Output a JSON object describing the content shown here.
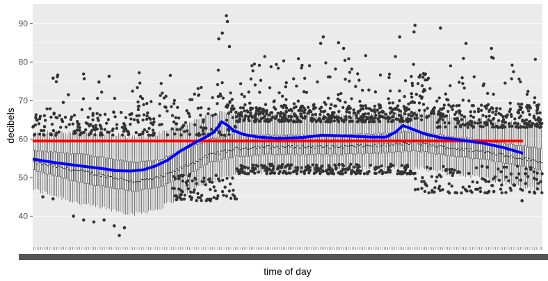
{
  "chart_data": {
    "type": "box",
    "title": "",
    "xlabel": "time of day",
    "ylabel": "decibels",
    "ylim": [
      32,
      95
    ],
    "yticks": [
      40,
      50,
      60,
      70,
      80,
      90
    ],
    "x_tick_labels_note": "",
    "grid": true,
    "background": "#ebebeb",
    "reference_line": {
      "value": 59.5,
      "color": "#ff0000"
    },
    "trend_line": {
      "color": "#0000ff",
      "points": [
        [
          0.0,
          54.8
        ],
        [
          0.05,
          53.8
        ],
        [
          0.1,
          53.0
        ],
        [
          0.15,
          52.2
        ],
        [
          0.17,
          51.8
        ],
        [
          0.2,
          51.7
        ],
        [
          0.225,
          52.0
        ],
        [
          0.25,
          53.0
        ],
        [
          0.275,
          54.5
        ],
        [
          0.3,
          56.8
        ],
        [
          0.33,
          59.0
        ],
        [
          0.36,
          61.0
        ],
        [
          0.375,
          62.5
        ],
        [
          0.385,
          64.5
        ],
        [
          0.395,
          63.8
        ],
        [
          0.41,
          62.2
        ],
        [
          0.43,
          61.2
        ],
        [
          0.46,
          60.5
        ],
        [
          0.5,
          60.2
        ],
        [
          0.55,
          60.4
        ],
        [
          0.59,
          61.0
        ],
        [
          0.64,
          60.8
        ],
        [
          0.69,
          60.5
        ],
        [
          0.72,
          60.5
        ],
        [
          0.74,
          61.8
        ],
        [
          0.755,
          63.5
        ],
        [
          0.77,
          62.8
        ],
        [
          0.8,
          61.3
        ],
        [
          0.83,
          60.4
        ],
        [
          0.87,
          59.8
        ],
        [
          0.92,
          58.9
        ],
        [
          0.96,
          57.8
        ],
        [
          1.0,
          56.3
        ]
      ]
    },
    "box_series": {
      "name": "",
      "count": 288,
      "median": [
        [
          0.0,
          54.0
        ],
        [
          0.1,
          51.5
        ],
        [
          0.2,
          49.0
        ],
        [
          0.25,
          50.0
        ],
        [
          0.3,
          53.0
        ],
        [
          0.35,
          56.0
        ],
        [
          0.4,
          57.5
        ],
        [
          0.45,
          58.0
        ],
        [
          0.5,
          58.0
        ],
        [
          0.6,
          58.0
        ],
        [
          0.7,
          58.5
        ],
        [
          0.75,
          59.0
        ],
        [
          0.8,
          58.0
        ],
        [
          0.9,
          56.5
        ],
        [
          1.0,
          54.0
        ]
      ],
      "q1": [
        [
          0.0,
          52.0
        ],
        [
          0.1,
          48.5
        ],
        [
          0.2,
          46.5
        ],
        [
          0.25,
          47.5
        ],
        [
          0.3,
          50.5
        ],
        [
          0.35,
          54.0
        ],
        [
          0.4,
          55.5
        ],
        [
          0.45,
          56.0
        ],
        [
          0.5,
          56.0
        ],
        [
          0.6,
          56.0
        ],
        [
          0.7,
          56.5
        ],
        [
          0.75,
          57.0
        ],
        [
          0.8,
          56.0
        ],
        [
          0.9,
          54.5
        ],
        [
          1.0,
          52.0
        ]
      ],
      "q3": [
        [
          0.0,
          57.0
        ],
        [
          0.1,
          56.0
        ],
        [
          0.2,
          54.0
        ],
        [
          0.25,
          54.5
        ],
        [
          0.3,
          57.5
        ],
        [
          0.35,
          60.0
        ],
        [
          0.4,
          61.5
        ],
        [
          0.45,
          61.0
        ],
        [
          0.5,
          61.0
        ],
        [
          0.6,
          61.0
        ],
        [
          0.7,
          61.5
        ],
        [
          0.75,
          62.0
        ],
        [
          0.8,
          61.0
        ],
        [
          0.9,
          59.5
        ],
        [
          1.0,
          57.5
        ]
      ],
      "whisker_low": [
        [
          0.0,
          47.0
        ],
        [
          0.1,
          43.0
        ],
        [
          0.2,
          40.5
        ],
        [
          0.25,
          42.0
        ],
        [
          0.3,
          46.0
        ],
        [
          0.35,
          49.0
        ],
        [
          0.4,
          51.0
        ],
        [
          0.45,
          51.5
        ],
        [
          0.5,
          51.5
        ],
        [
          0.6,
          52.0
        ],
        [
          0.7,
          52.5
        ],
        [
          0.75,
          52.5
        ],
        [
          0.8,
          51.5
        ],
        [
          0.9,
          49.5
        ],
        [
          1.0,
          46.5
        ]
      ],
      "whisker_high": [
        [
          0.0,
          61.5
        ],
        [
          0.1,
          62.0
        ],
        [
          0.2,
          60.5
        ],
        [
          0.25,
          61.5
        ],
        [
          0.3,
          64.0
        ],
        [
          0.35,
          66.5
        ],
        [
          0.4,
          67.0
        ],
        [
          0.45,
          66.5
        ],
        [
          0.5,
          66.5
        ],
        [
          0.6,
          66.5
        ],
        [
          0.7,
          66.5
        ],
        [
          0.75,
          67.0
        ],
        [
          0.8,
          66.5
        ],
        [
          0.9,
          65.0
        ],
        [
          1.0,
          63.0
        ]
      ]
    },
    "outlier_bands": [
      {
        "x_range": [
          0.0,
          0.2
        ],
        "y_range": [
          61.0,
          67.0
        ],
        "density": 0.55
      },
      {
        "x_range": [
          0.2,
          0.4
        ],
        "y_range": [
          61.0,
          72.0
        ],
        "density": 0.55
      },
      {
        "x_range": [
          0.4,
          0.74
        ],
        "y_range": [
          64.5,
          69.0
        ],
        "density": 1.0
      },
      {
        "x_range": [
          0.74,
          0.78
        ],
        "y_range": [
          65.0,
          77.0
        ],
        "density": 1.0
      },
      {
        "x_range": [
          0.78,
          1.0
        ],
        "y_range": [
          63.0,
          69.0
        ],
        "density": 0.9
      },
      {
        "x_range": [
          0.4,
          0.75
        ],
        "y_range": [
          51.0,
          53.5
        ],
        "density": 0.6
      },
      {
        "x_range": [
          0.27,
          0.4
        ],
        "y_range": [
          44.0,
          51.0
        ],
        "density": 0.6
      },
      {
        "x_range": [
          0.75,
          1.0
        ],
        "y_range": [
          46.0,
          53.0
        ],
        "density": 0.45
      },
      {
        "x_range": [
          0.0,
          0.4
        ],
        "y_range": [
          66.0,
          78.0
        ],
        "density": 0.12
      },
      {
        "x_range": [
          0.4,
          1.0
        ],
        "y_range": [
          69.0,
          82.0
        ],
        "density": 0.18
      }
    ],
    "outlier_highlights": [
      [
        0.38,
        92.0
      ],
      [
        0.382,
        90.5
      ],
      [
        0.386,
        84.0
      ],
      [
        0.372,
        87.5
      ],
      [
        0.365,
        86.0
      ],
      [
        0.75,
        89.5
      ],
      [
        0.748,
        87.8
      ],
      [
        0.8,
        88.8
      ],
      [
        0.72,
        86.5
      ],
      [
        0.57,
        86.5
      ],
      [
        0.565,
        84.8
      ],
      [
        0.04,
        75.8
      ],
      [
        0.15,
        76.3
      ],
      [
        0.13,
        74.8
      ],
      [
        0.27,
        76.5
      ],
      [
        0.6,
        85.0
      ],
      [
        0.61,
        83.5
      ],
      [
        0.85,
        84.8
      ],
      [
        0.9,
        83.5
      ],
      [
        0.07,
        71.5
      ],
      [
        0.06,
        69.5
      ],
      [
        0.17,
        35.0
      ],
      [
        0.16,
        37.5
      ],
      [
        0.14,
        39.0
      ],
      [
        0.18,
        37.0
      ],
      [
        0.96,
        44.0
      ],
      [
        0.985,
        46.0
      ],
      [
        0.02,
        45.0
      ],
      [
        0.04,
        44.5
      ],
      [
        0.08,
        40.0
      ],
      [
        0.1,
        39.0
      ],
      [
        0.12,
        38.5
      ]
    ]
  }
}
